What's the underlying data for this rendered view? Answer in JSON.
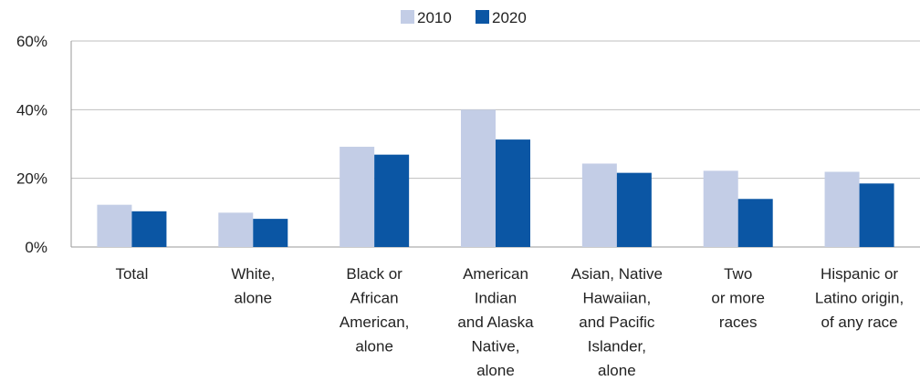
{
  "chart_data": {
    "type": "bar",
    "categories": [
      [
        "Total"
      ],
      [
        "White,",
        "alone"
      ],
      [
        "Black or",
        "African",
        "American,",
        "alone"
      ],
      [
        "American",
        "Indian",
        "and Alaska",
        "Native,",
        "alone"
      ],
      [
        "Asian, Native",
        "Hawaiian,",
        "and Pacific",
        "Islander,",
        "alone"
      ],
      [
        "Two",
        "or more",
        "races"
      ],
      [
        "Hispanic or",
        "Latino origin,",
        "of any race"
      ]
    ],
    "series": [
      {
        "name": "2010",
        "color": "#c3cde6",
        "values": [
          12.3,
          10.0,
          29.2,
          40.0,
          24.3,
          22.2,
          21.9
        ]
      },
      {
        "name": "2020",
        "color": "#0b56a4",
        "values": [
          10.4,
          8.2,
          26.9,
          31.3,
          21.6,
          14.0,
          18.5
        ]
      }
    ],
    "y_ticks": [
      "0%",
      "20%",
      "40%",
      "60%"
    ],
    "ylim": [
      0,
      60
    ],
    "legend_position": "top-center",
    "grid": true
  }
}
